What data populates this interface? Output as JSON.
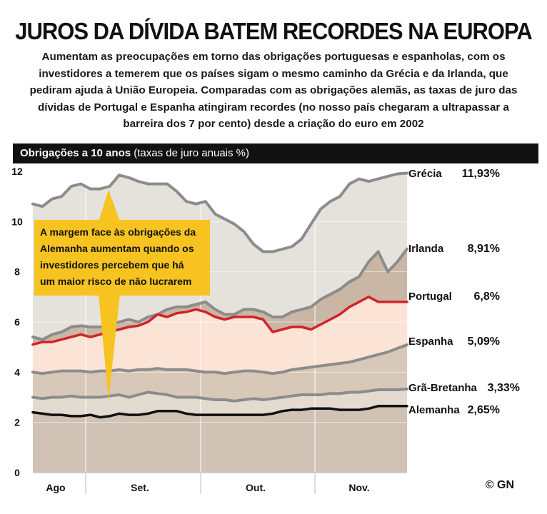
{
  "header": {
    "title": "JUROS DA DÍVIDA BATEM RECORDES NA EUROPA",
    "lede": "Aumentam as preocupações em torno das obrigações portuguesas e espanholas, com os investidores a temerem que os países sigam o mesmo caminho da Grécia e da Irlanda, que pediram ajuda à União Europeia. Comparadas com as obrigações alemãs, as taxas de juro das dívidas de Portugal e Espanha atingiram recordes (no nosso país chegaram a ultrapassar a barreira dos 7 por cento) desde a criação do euro em 2002"
  },
  "band": {
    "label": "Obrigações a 10 anos",
    "sub": "(taxas de juro anuais %)"
  },
  "callout": {
    "lines": [
      "A margem face às obrigações da",
      "Alemanha aumentam quando os",
      "investidores percebem que há",
      "um maior risco de não lucrarem"
    ]
  },
  "credit": "© GN",
  "colors": {
    "line_gray": "#8c8c8c",
    "line_black": "#111111",
    "line_red": "#d3222a",
    "fill_grecia": "#e5e2dc",
    "fill_irlanda": "#c9b6a4",
    "fill_portugal": "#fbe3d5",
    "fill_espanha": "#d8c8b7",
    "fill_gb": "#e4dbd0",
    "fill_alemanha": "#d0c3b5",
    "callout": "#f6c320"
  },
  "chart_data": {
    "type": "area",
    "title": "Obrigações a 10 anos",
    "ylabel": "(taxas de juro anuais %)",
    "ylim": [
      0,
      12
    ],
    "yticks": [
      0,
      2,
      4,
      6,
      8,
      10,
      12
    ],
    "x_labels": [
      "Ago",
      "Set.",
      "Out.",
      "Nov."
    ],
    "grid": true,
    "legend": "right",
    "series": [
      {
        "name": "Grécia",
        "final_label": "11,93%",
        "color_key": "line_gray",
        "values": [
          10.7,
          10.6,
          10.9,
          11.0,
          11.4,
          11.5,
          11.3,
          11.3,
          11.4,
          11.85,
          11.75,
          11.6,
          11.5,
          11.5,
          11.5,
          11.2,
          10.8,
          10.7,
          10.8,
          10.3,
          10.1,
          9.9,
          9.6,
          9.1,
          8.8,
          8.8,
          8.9,
          9.0,
          9.3,
          9.9,
          10.5,
          10.8,
          11.0,
          11.5,
          11.7,
          11.6,
          11.7,
          11.8,
          11.9,
          11.93
        ]
      },
      {
        "name": "Irlanda",
        "final_label": "8,91%",
        "color_key": "line_gray",
        "values": [
          5.4,
          5.3,
          5.5,
          5.6,
          5.8,
          5.85,
          5.8,
          5.8,
          5.9,
          6.0,
          6.1,
          6.0,
          6.2,
          6.3,
          6.5,
          6.6,
          6.6,
          6.7,
          6.8,
          6.5,
          6.3,
          6.3,
          6.5,
          6.5,
          6.4,
          6.2,
          6.2,
          6.4,
          6.5,
          6.6,
          6.9,
          7.1,
          7.3,
          7.6,
          7.8,
          8.4,
          8.8,
          8.0,
          8.4,
          8.91
        ]
      },
      {
        "name": "Portugal",
        "final_label": "6,8%",
        "color_key": "line_red",
        "values": [
          5.1,
          5.2,
          5.2,
          5.3,
          5.4,
          5.5,
          5.4,
          5.5,
          5.6,
          5.7,
          5.8,
          5.85,
          6.0,
          6.3,
          6.2,
          6.35,
          6.4,
          6.5,
          6.4,
          6.2,
          6.1,
          6.2,
          6.2,
          6.2,
          6.1,
          5.6,
          5.7,
          5.8,
          5.8,
          5.7,
          5.9,
          6.1,
          6.3,
          6.6,
          6.8,
          7.0,
          6.8,
          6.8,
          6.8,
          6.8
        ]
      },
      {
        "name": "Espanha",
        "final_label": "5,09%",
        "color_key": "line_gray",
        "values": [
          4.0,
          3.95,
          4.0,
          4.05,
          4.05,
          4.05,
          4.0,
          4.05,
          4.05,
          4.1,
          4.05,
          4.1,
          4.1,
          4.15,
          4.1,
          4.1,
          4.1,
          4.05,
          4.0,
          4.0,
          3.95,
          4.0,
          4.05,
          4.05,
          4.0,
          3.95,
          4.0,
          4.1,
          4.15,
          4.2,
          4.25,
          4.3,
          4.35,
          4.4,
          4.5,
          4.6,
          4.7,
          4.8,
          4.95,
          5.09
        ]
      },
      {
        "name": "Grã-Bretanha",
        "final_label": "3,33%",
        "color_key": "line_gray",
        "values": [
          3.0,
          2.95,
          3.0,
          3.0,
          3.05,
          3.0,
          3.0,
          3.0,
          3.05,
          3.1,
          3.0,
          3.1,
          3.2,
          3.15,
          3.1,
          3.0,
          3.0,
          3.0,
          2.95,
          2.9,
          2.9,
          2.85,
          2.9,
          2.95,
          2.9,
          2.95,
          3.0,
          3.05,
          3.1,
          3.1,
          3.1,
          3.15,
          3.15,
          3.2,
          3.2,
          3.25,
          3.3,
          3.3,
          3.3,
          3.33
        ]
      },
      {
        "name": "Alemanha",
        "final_label": "2,65%",
        "color_key": "line_black",
        "values": [
          2.4,
          2.35,
          2.3,
          2.3,
          2.25,
          2.25,
          2.3,
          2.2,
          2.25,
          2.35,
          2.3,
          2.3,
          2.35,
          2.45,
          2.45,
          2.45,
          2.35,
          2.3,
          2.3,
          2.3,
          2.3,
          2.3,
          2.3,
          2.3,
          2.3,
          2.35,
          2.45,
          2.5,
          2.5,
          2.55,
          2.55,
          2.55,
          2.5,
          2.5,
          2.5,
          2.55,
          2.65,
          2.65,
          2.65,
          2.65
        ]
      }
    ]
  }
}
